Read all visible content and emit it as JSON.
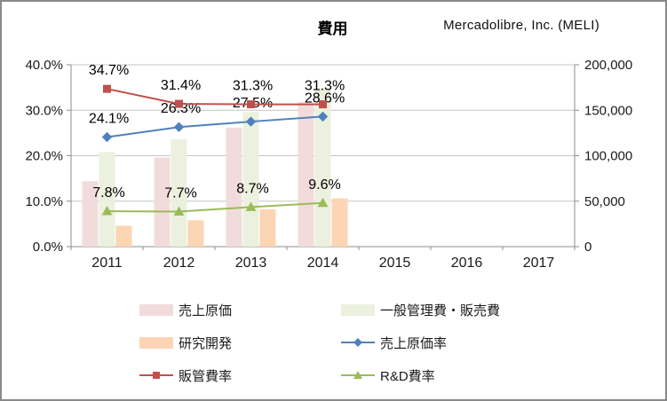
{
  "header": {
    "title": "費用",
    "company": "Mercadolibre, Inc. (MELI)"
  },
  "colors": {
    "bar_cogs": "#F2DCDB",
    "bar_sga": "#EBF1DE",
    "bar_rnd": "#FCD5B4",
    "line_cogs_rate": "#4F81BD",
    "line_sga_rate": "#C0504D",
    "line_rnd_rate": "#9BBB59",
    "gridline": "#C6C6C6",
    "axis": "#8E8E8E",
    "text": "#1A1A1A"
  },
  "chart_data": {
    "type": "bar",
    "subtype": "combo-bar-line",
    "title": "費用",
    "categories": [
      "2011",
      "2012",
      "2013",
      "2014",
      "2015",
      "2016",
      "2017"
    ],
    "series": [
      {
        "name": "売上原価",
        "kind": "bar",
        "axis": "right",
        "color": "#F2DCDB",
        "values": [
          72000,
          98000,
          131000,
          159000,
          null,
          null,
          null
        ]
      },
      {
        "name": "一般管理費・販売費",
        "kind": "bar",
        "axis": "right",
        "color": "#EBF1DE",
        "values": [
          104000,
          118000,
          148000,
          174000,
          null,
          null,
          null
        ]
      },
      {
        "name": "研究開発",
        "kind": "bar",
        "axis": "right",
        "color": "#FCD5B4",
        "values": [
          23000,
          29000,
          41000,
          53000,
          null,
          null,
          null
        ]
      },
      {
        "name": "売上原価率",
        "kind": "line",
        "axis": "left",
        "color": "#4F81BD",
        "marker": "diamond",
        "values": [
          24.1,
          26.3,
          27.5,
          28.6,
          null,
          null,
          null
        ],
        "labels": [
          "24.1%",
          "26.3%",
          "27.5%",
          "28.6%"
        ]
      },
      {
        "name": "販管費率",
        "kind": "line",
        "axis": "left",
        "color": "#C0504D",
        "marker": "square",
        "values": [
          34.7,
          31.4,
          31.3,
          31.3,
          null,
          null,
          null
        ],
        "labels": [
          "34.7%",
          "31.4%",
          "31.3%",
          "31.3%"
        ]
      },
      {
        "name": "R&D費率",
        "kind": "line",
        "axis": "left",
        "color": "#9BBB59",
        "marker": "triangle",
        "values": [
          7.8,
          7.7,
          8.7,
          9.6,
          null,
          null,
          null
        ],
        "labels": [
          "7.8%",
          "7.7%",
          "8.7%",
          "9.6%"
        ]
      }
    ],
    "left_axis": {
      "min": 0,
      "max": 40,
      "ticks": [
        "0.0%",
        "10.0%",
        "20.0%",
        "30.0%",
        "40.0%"
      ],
      "tick_values": [
        0,
        10,
        20,
        30,
        40
      ]
    },
    "right_axis": {
      "min": 0,
      "max": 200000,
      "ticks": [
        "0",
        "50,000",
        "100,000",
        "150,000",
        "200,000"
      ],
      "tick_values": [
        0,
        50000,
        100000,
        150000,
        200000
      ]
    },
    "grid": true,
    "legend_position": "bottom"
  },
  "legend": {
    "items": [
      {
        "label": "売上原価",
        "swatch": "bar",
        "color": "#F2DCDB"
      },
      {
        "label": "一般管理費・販売費",
        "swatch": "bar",
        "color": "#EBF1DE"
      },
      {
        "label": "研究開発",
        "swatch": "bar",
        "color": "#FCD5B4"
      },
      {
        "label": "売上原価率",
        "swatch": "line",
        "marker": "diamond",
        "color": "#4F81BD"
      },
      {
        "label": "販管費率",
        "swatch": "line",
        "marker": "square",
        "color": "#C0504D"
      },
      {
        "label": "R&D費率",
        "swatch": "line",
        "marker": "triangle",
        "color": "#9BBB59"
      }
    ]
  }
}
